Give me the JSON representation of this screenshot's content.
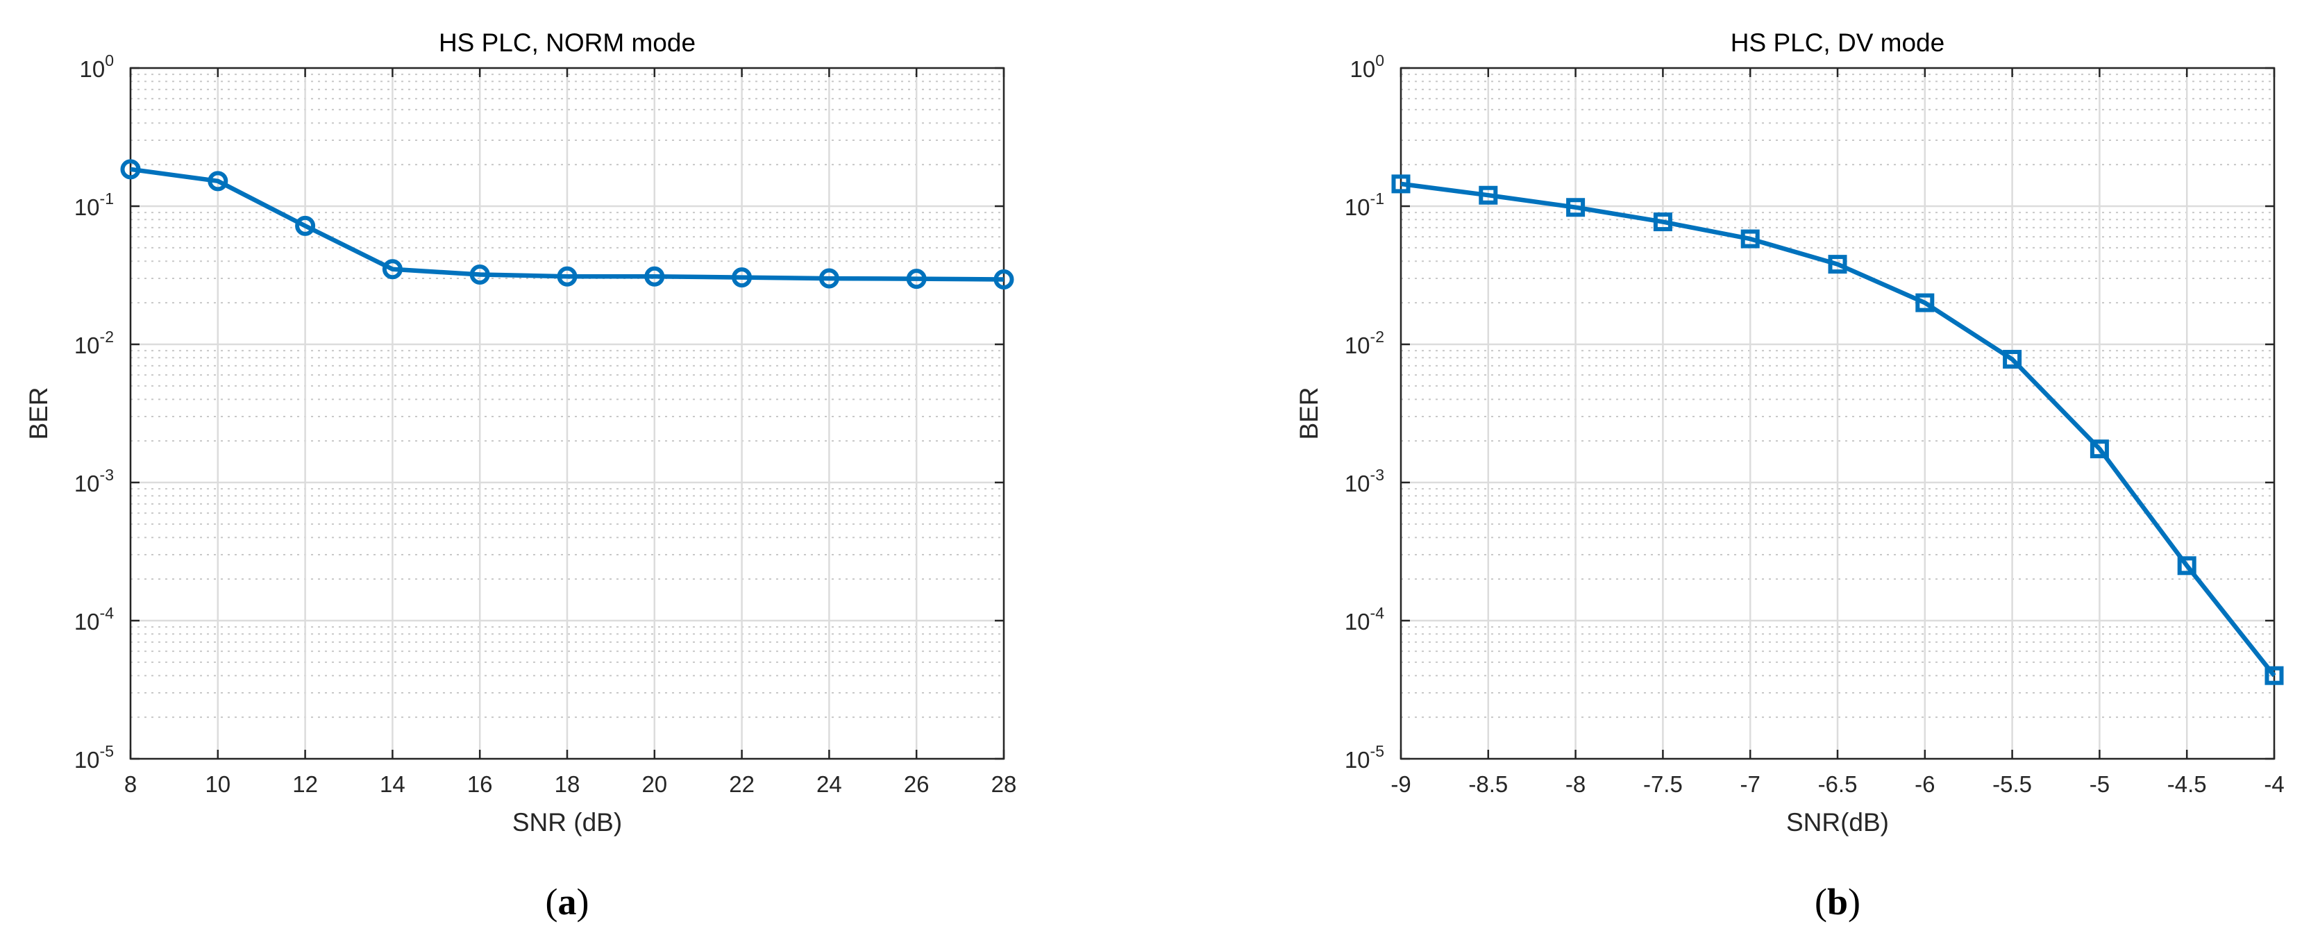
{
  "chart_data": [
    {
      "type": "line",
      "title": "HS PLC, NORM mode",
      "xlabel": "SNR (dB)",
      "ylabel": "BER",
      "caption": "(a)",
      "yscale": "log",
      "xlim": [
        8,
        28
      ],
      "ylim": [
        1e-05,
        1
      ],
      "xticks": [
        "8",
        "10",
        "12",
        "14",
        "16",
        "18",
        "20",
        "22",
        "24",
        "26",
        "28"
      ],
      "yticks": [
        {
          "base": "10",
          "exp": "-5"
        },
        {
          "base": "10",
          "exp": "-4"
        },
        {
          "base": "10",
          "exp": "-3"
        },
        {
          "base": "10",
          "exp": "-2"
        },
        {
          "base": "10",
          "exp": "-1"
        },
        {
          "base": "10",
          "exp": "0"
        }
      ],
      "grid": true,
      "minor_grid": true,
      "marker": "circle",
      "color": "#0072BD",
      "series": [
        {
          "x": [
            8,
            10,
            12,
            14,
            16,
            18,
            20,
            22,
            24,
            26,
            28
          ],
          "y": [
            0.185,
            0.152,
            0.072,
            0.035,
            0.032,
            0.031,
            0.031,
            0.0305,
            0.03,
            0.0298,
            0.0295
          ]
        }
      ]
    },
    {
      "type": "line",
      "title": "HS PLC, DV mode",
      "xlabel": "SNR(dB)",
      "ylabel": "BER",
      "caption": "(b)",
      "yscale": "log",
      "xlim": [
        -9,
        -4
      ],
      "ylim": [
        1e-05,
        1
      ],
      "xticks": [
        "-9",
        "-8.5",
        "-8",
        "-7.5",
        "-7",
        "-6.5",
        "-6",
        "-5.5",
        "-5",
        "-4.5",
        "-4"
      ],
      "yticks": [
        {
          "base": "10",
          "exp": "-5"
        },
        {
          "base": "10",
          "exp": "-4"
        },
        {
          "base": "10",
          "exp": "-3"
        },
        {
          "base": "10",
          "exp": "-2"
        },
        {
          "base": "10",
          "exp": "-1"
        },
        {
          "base": "10",
          "exp": "0"
        }
      ],
      "grid": true,
      "minor_grid": true,
      "marker": "square",
      "color": "#0072BD",
      "series": [
        {
          "x": [
            -9,
            -8.5,
            -8,
            -7.5,
            -7,
            -6.5,
            -6,
            -5.5,
            -5,
            -4.5,
            -4
          ],
          "y": [
            0.145,
            0.12,
            0.098,
            0.077,
            0.058,
            0.038,
            0.02,
            0.0078,
            0.00175,
            0.00025,
            4e-05
          ]
        }
      ]
    }
  ]
}
